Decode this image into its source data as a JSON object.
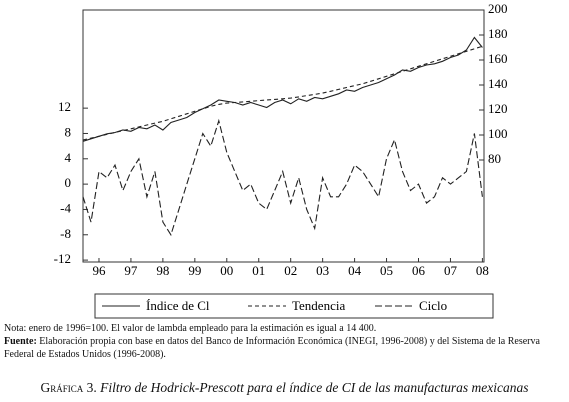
{
  "chart_data": {
    "type": "line",
    "x": [
      1996,
      1996.25,
      1996.5,
      1996.75,
      1997,
      1997.25,
      1997.5,
      1997.75,
      1998,
      1998.25,
      1998.5,
      1998.75,
      1999,
      1999.25,
      1999.5,
      1999.75,
      2000,
      2000.25,
      2000.5,
      2000.75,
      2001,
      2001.25,
      2001.5,
      2001.75,
      2002,
      2002.25,
      2002.5,
      2002.75,
      2003,
      2003.25,
      2003.5,
      2003.75,
      2004,
      2004.25,
      2004.5,
      2004.75,
      2005,
      2005.25,
      2005.5,
      2005.75,
      2006,
      2006.25,
      2006.5,
      2006.75,
      2007,
      2007.25,
      2007.5,
      2007.75,
      2008,
      2008.25,
      2008.5
    ],
    "xlim": [
      1996,
      2008.55
    ],
    "xticks": [
      {
        "value": 1996.5,
        "label": "96"
      },
      {
        "value": 1997.5,
        "label": "97"
      },
      {
        "value": 1998.5,
        "label": "98"
      },
      {
        "value": 1999.5,
        "label": "99"
      },
      {
        "value": 2000.5,
        "label": "00"
      },
      {
        "value": 2001.5,
        "label": "01"
      },
      {
        "value": 2002.5,
        "label": "02"
      },
      {
        "value": 2003.5,
        "label": "03"
      },
      {
        "value": 2004.5,
        "label": "04"
      },
      {
        "value": 2005.5,
        "label": "05"
      },
      {
        "value": 2006.5,
        "label": "06"
      },
      {
        "value": 2007.5,
        "label": "07"
      },
      {
        "value": 2008.5,
        "label": "08"
      }
    ],
    "ylim": [
      -12.3,
      27.5
    ],
    "yticks": [
      -12,
      -8,
      -4,
      0,
      4,
      8,
      12
    ],
    "y2lim": [
      -1.6,
      200
    ],
    "y2ticks": [
      80,
      100,
      120,
      140,
      160,
      180,
      200
    ],
    "series": [
      {
        "name": "Índice de Cl",
        "color": "#222222",
        "dash": "none",
        "axis": "y2",
        "values": [
          95,
          97,
          99,
          101,
          102,
          104,
          103,
          106,
          105,
          108,
          104,
          110,
          112,
          114,
          118,
          121,
          124,
          128,
          127,
          126,
          124,
          126,
          124,
          122,
          126,
          128,
          125,
          129,
          127,
          130,
          129,
          131,
          133,
          136,
          135,
          138,
          140,
          142,
          145,
          148,
          152,
          151,
          154,
          156,
          157,
          159,
          162,
          164,
          168,
          178,
          170
        ]
      },
      {
        "name": "Tendencia",
        "color": "#222222",
        "dash": "4 3",
        "axis": "y2",
        "values": [
          96,
          97.5,
          99,
          100.5,
          102,
          103.5,
          105,
          106.5,
          108,
          109.5,
          111,
          113,
          115,
          117,
          119,
          121,
          123,
          124.5,
          125.5,
          126,
          126.5,
          127,
          127.5,
          128,
          128.5,
          129,
          129.5,
          130.5,
          131.5,
          132.5,
          133.5,
          135,
          136.5,
          138,
          139.5,
          141,
          143,
          145,
          147,
          149,
          151,
          153,
          155,
          157,
          159,
          161,
          163,
          165,
          167,
          169,
          171
        ]
      },
      {
        "name": "Ciclo",
        "color": "#222222",
        "dash": "7 3",
        "values": [
          -2,
          -6,
          2,
          1,
          3,
          -1,
          2,
          4,
          -2,
          2,
          -6,
          -8,
          -4,
          0,
          4,
          8,
          6,
          10,
          5,
          2,
          -1,
          0,
          -3,
          -4,
          -1,
          2,
          -3,
          1,
          -4,
          -7,
          1,
          -2,
          -2,
          0,
          3,
          2,
          0,
          -2,
          4,
          7,
          2,
          -1,
          0,
          -3,
          -2,
          1,
          0,
          1,
          2,
          8,
          -2
        ]
      }
    ],
    "note": "Nota: enero de 1996=100. El valor de lambda empleado para la estimación es igual a 14 400.",
    "source_label": "Fuente:",
    "source": "Elaboración propia con base en datos del Banco de Información Económica (INEGI, 1996-2008) y del Sistema de la Reserva Federal de Estados Unidos (1996-2008).",
    "caption_label": "Gráfica 3.",
    "caption": "Filtro de Hodrick-Prescott para el índice de CI de las manufacturas mexicanas"
  }
}
